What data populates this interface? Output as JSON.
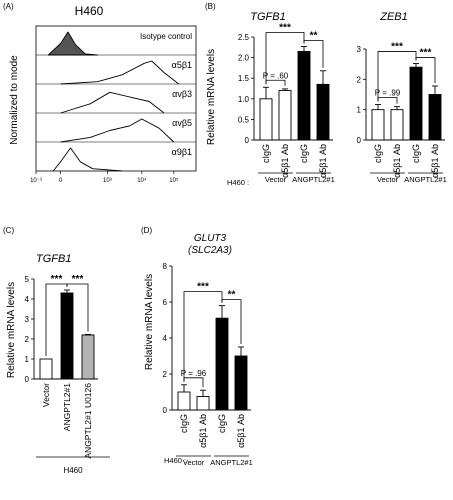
{
  "panels": {
    "A": {
      "letter": "(A)",
      "title": "H460",
      "ylabel": "Normalized to mode",
      "rows": [
        "Isotype control",
        "α5β1",
        "αvβ3",
        "αvβ5",
        "α9β1"
      ],
      "xticks": [
        "10⁻³",
        "0",
        "10³",
        "10⁴",
        "10⁵"
      ]
    },
    "B": {
      "letter": "(B)",
      "h460": "H460 :",
      "vector": "Vector",
      "angptl": "ANGPTL2#1"
    },
    "C": {
      "letter": "(C)",
      "h460": "H460"
    },
    "D": {
      "letter": "(D)",
      "h460": "H460 :",
      "vector": "Vector",
      "angptl": "ANGPTL2#1"
    }
  },
  "colors": {
    "white": "#ffffff",
    "black": "#000000",
    "gray": "#b3b3b3",
    "isotype_fill": "#555555"
  },
  "chart_data": [
    {
      "type": "line",
      "title": "H460",
      "ylabel": "Normalized to mode",
      "series": [
        {
          "name": "Isotype control",
          "x": [
            -0.5,
            0,
            0.3,
            0.6,
            1.0,
            1.5
          ],
          "y": [
            0,
            0.5,
            1.0,
            0.45,
            0.05,
            0
          ]
        },
        {
          "name": "α5β1",
          "x": [
            0,
            1.5,
            2.5,
            3.4,
            3.7,
            4.2,
            4.8
          ],
          "y": [
            0,
            0.1,
            0.4,
            0.9,
            1.0,
            0.5,
            0
          ]
        },
        {
          "name": "αvβ3",
          "x": [
            0,
            1.2,
            2.0,
            2.8,
            3.6,
            4.2
          ],
          "y": [
            0,
            0.4,
            0.9,
            0.7,
            0.5,
            0
          ]
        },
        {
          "name": "αvβ5",
          "x": [
            0,
            1.2,
            2.0,
            2.8,
            3.3,
            4.0,
            4.6
          ],
          "y": [
            0,
            0.2,
            0.5,
            0.7,
            1.0,
            0.6,
            0
          ]
        },
        {
          "name": "α9β1",
          "x": [
            -0.3,
            0,
            0.4,
            0.8,
            1.3,
            2.5
          ],
          "y": [
            0,
            0.4,
            1.0,
            0.4,
            0.1,
            0
          ]
        }
      ]
    },
    {
      "type": "bar",
      "title": "TGFB1",
      "ylabel": "Relative mRNA levels",
      "ylim": [
        0,
        2.5
      ],
      "yticks": [
        "0",
        "0.5",
        "1.0",
        "1.5",
        "2.0",
        "2.5"
      ],
      "categories": [
        "cIgG",
        "α5β1 Ab",
        "cIgG",
        "α5β1 Ab"
      ],
      "values": [
        1.0,
        1.2,
        2.15,
        1.35
      ],
      "errors": [
        0.28,
        0.04,
        0.12,
        0.33
      ],
      "bar_colors": [
        "#ffffff",
        "#ffffff",
        "#000000",
        "#000000"
      ],
      "comparisons": [
        {
          "from": 0,
          "to": 1,
          "label": "P = .60"
        },
        {
          "from": 0,
          "to": 2,
          "label": "***"
        },
        {
          "from": 2,
          "to": 3,
          "label": "**"
        }
      ],
      "groups": [
        "Vector",
        "ANGPTL2#1"
      ]
    },
    {
      "type": "bar",
      "title": "ZEB1",
      "ylim": [
        0,
        3
      ],
      "yticks": [
        "0",
        "1",
        "2",
        "3"
      ],
      "categories": [
        "cIgG",
        "α5β1 Ab",
        "cIgG",
        "α5β1 Ab"
      ],
      "values": [
        1.0,
        1.0,
        2.4,
        1.5
      ],
      "errors": [
        0.17,
        0.1,
        0.12,
        0.28
      ],
      "bar_colors": [
        "#ffffff",
        "#ffffff",
        "#000000",
        "#000000"
      ],
      "comparisons": [
        {
          "from": 0,
          "to": 1,
          "label": "P = .99"
        },
        {
          "from": 0,
          "to": 2,
          "label": "***"
        },
        {
          "from": 2,
          "to": 3,
          "label": "***"
        }
      ],
      "groups": [
        "Vector",
        "ANGPTL2#1"
      ]
    },
    {
      "type": "bar",
      "title": "TGFB1",
      "ylabel": "Relative mRNA levels",
      "ylim": [
        0,
        5
      ],
      "yticks": [
        "0",
        "1",
        "2",
        "3",
        "4",
        "5"
      ],
      "categories": [
        "Vector",
        "ANGPTL2#1",
        "ANGPTL2#1 U0126"
      ],
      "values": [
        1.0,
        4.3,
        2.2
      ],
      "errors": [
        0.0,
        0.15,
        0.03
      ],
      "bar_colors": [
        "#ffffff",
        "#000000",
        "#b3b3b3"
      ],
      "comparisons": [
        {
          "from": 0,
          "to": 1,
          "label": "***"
        },
        {
          "from": 1,
          "to": 2,
          "label": "***"
        }
      ]
    },
    {
      "type": "bar",
      "title": "GLUT3",
      "subtitle": "(SLC2A3)",
      "ylabel": "Relative mRNA levels",
      "ylim": [
        0,
        8
      ],
      "yticks": [
        "0",
        "2",
        "4",
        "6",
        "8"
      ],
      "categories": [
        "cIgG",
        "α5β1 Ab",
        "cIgG",
        "α5β1 Ab"
      ],
      "values": [
        1.0,
        0.75,
        5.1,
        3.0
      ],
      "errors": [
        0.4,
        0.35,
        0.7,
        0.5
      ],
      "bar_colors": [
        "#ffffff",
        "#ffffff",
        "#000000",
        "#000000"
      ],
      "comparisons": [
        {
          "from": 0,
          "to": 1,
          "label": "P = .96"
        },
        {
          "from": 0,
          "to": 2,
          "label": "***"
        },
        {
          "from": 2,
          "to": 3,
          "label": "**"
        }
      ],
      "groups": [
        "Vector",
        "ANGPTL2#1"
      ]
    }
  ]
}
